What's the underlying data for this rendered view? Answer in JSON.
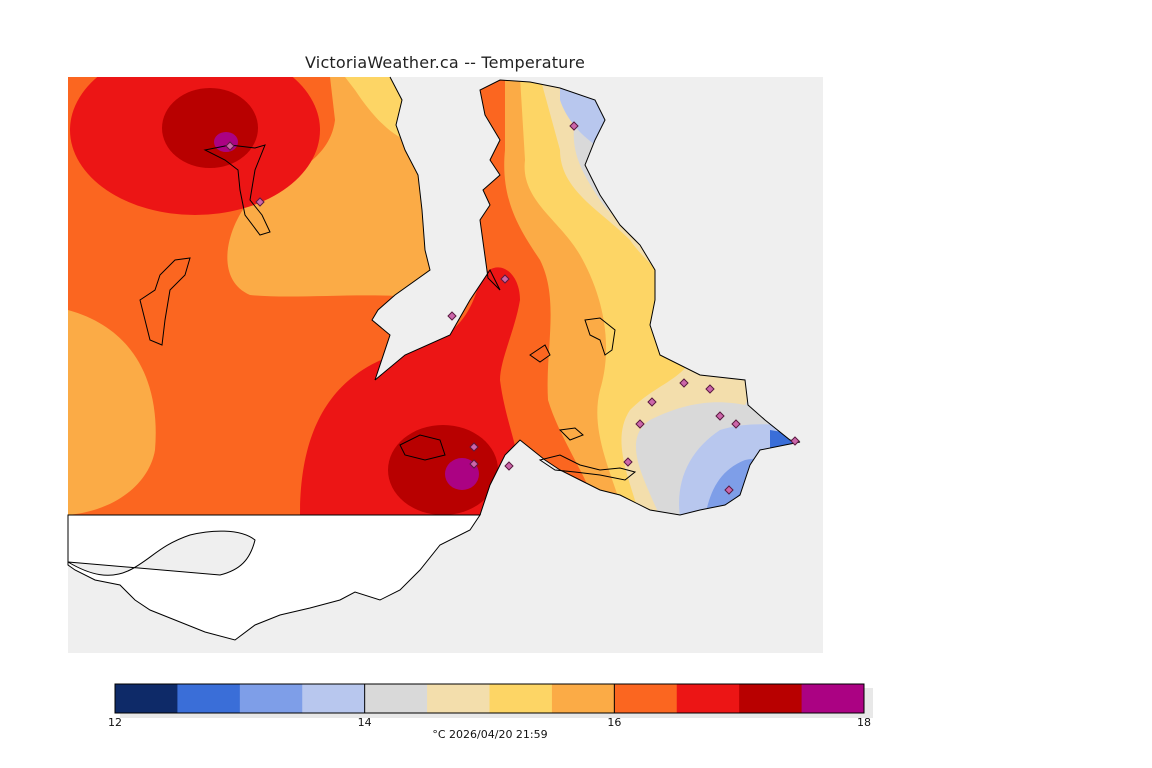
{
  "title": "VictoriaWeather.ca -- Temperature",
  "legend": {
    "min": 12,
    "max": 18,
    "tick_labels": [
      "12",
      "14",
      "16",
      "18"
    ],
    "unit": "°C",
    "timestamp": "2026/04/20 21:59",
    "colors": [
      "#0e2a68",
      "#3a6ed8",
      "#7e9ee8",
      "#b8c7ee",
      "#d9d9d9",
      "#f3deac",
      "#fdd565",
      "#fbab46",
      "#fb6620",
      "#ec1515",
      "#b80000",
      "#ab0283"
    ]
  },
  "palette": {
    "land_outline": "#000000",
    "water": "#efefef",
    "station_marker": "#cc66aa"
  }
}
